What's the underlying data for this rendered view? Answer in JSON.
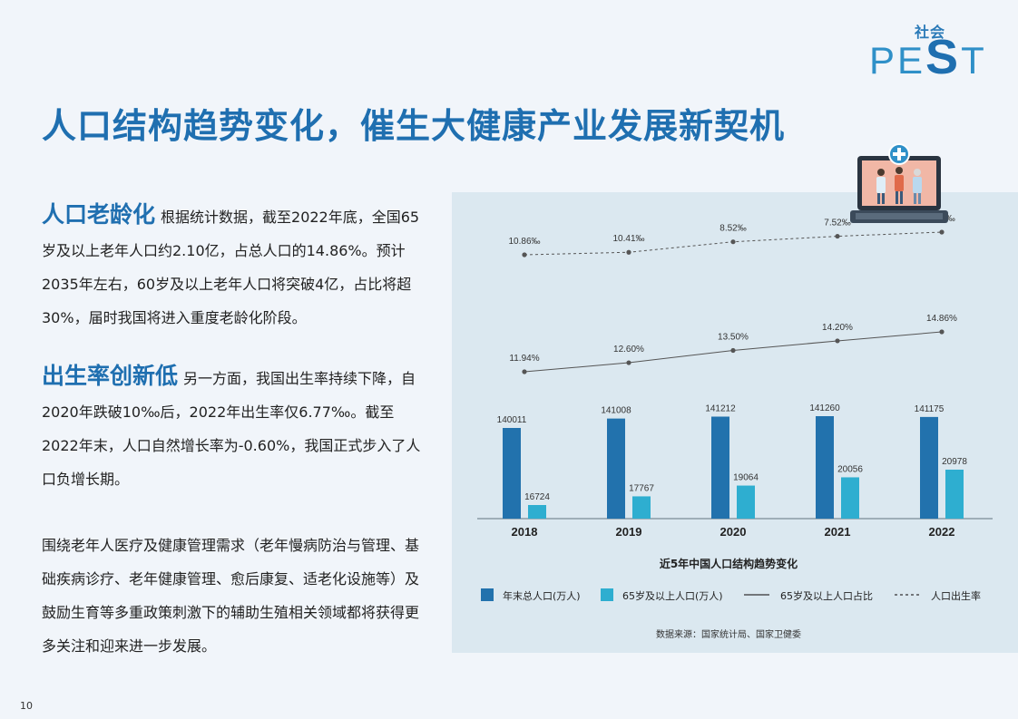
{
  "logo": {
    "sub": "社会",
    "main_pre": "PE",
    "main_big": "S",
    "main_post": "T"
  },
  "title": "人口结构趋势变化，催生大健康产业发展新契机",
  "blocks": [
    {
      "head": "人口老龄化",
      "body": "根据统计数据，截至2022年底，全国65岁及以上老年人口约2.10亿，占总人口的14.86%。预计2035年左右，60岁及以上老年人口将突破4亿，占比将超30%，届时我国将进入重度老龄化阶段。"
    },
    {
      "head": "出生率创新低",
      "body": "另一方面，我国出生率持续下降，自2020年跌破10‰后，2022年出生率仅6.77‰。截至2022年末，人口自然增长率为-0.60%，我国正式步入了人口负增长期。"
    },
    {
      "head": "",
      "body": "围绕老年人医疗及健康管理需求（老年慢病防治与管理、基础疾病诊疗、老年健康管理、愈后康复、适老化设施等）及鼓励生育等多重政策刺激下的辅助生殖相关领域都将获得更多关注和迎来进一步发展。"
    }
  ],
  "page_number": "10",
  "chart_data": {
    "type": "bar",
    "title": "近5年中国人口结构趋势变化",
    "source": "数据来源：国家统计局、国家卫健委",
    "categories": [
      "2018",
      "2019",
      "2020",
      "2021",
      "2022"
    ],
    "series": [
      {
        "name": "年末总人口(万人)",
        "type": "bar",
        "color": "#2272ad",
        "values": [
          140011,
          141008,
          141212,
          141260,
          141175
        ],
        "labels": [
          "140011",
          "141008",
          "141212",
          "141260",
          "141175"
        ]
      },
      {
        "name": "65岁及以上人口(万人)",
        "type": "bar",
        "color": "#2eaed0",
        "values": [
          16724,
          17767,
          19064,
          20056,
          20978
        ],
        "labels": [
          "16724",
          "17767",
          "19064",
          "20056",
          "20978"
        ]
      },
      {
        "name": "65岁及以上人口占比",
        "type": "line",
        "style": "solid",
        "color": "#555555",
        "values": [
          11.94,
          12.6,
          13.5,
          14.2,
          14.86
        ],
        "labels": [
          "11.94%",
          "12.60%",
          "13.50%",
          "14.20%",
          "14.86%"
        ]
      },
      {
        "name": "人口出生率",
        "type": "line",
        "style": "dashed",
        "color": "#555555",
        "values": [
          10.86,
          10.41,
          8.52,
          7.52,
          6.77
        ],
        "labels": [
          "10.86‰",
          "10.41‰",
          "8.52‰",
          "7.52‰",
          "6.77‰"
        ]
      }
    ],
    "legend_position": "bottom",
    "grid": false
  }
}
